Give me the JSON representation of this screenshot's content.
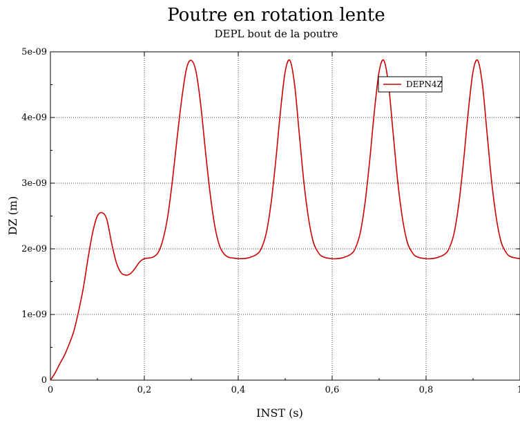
{
  "chart_data": {
    "type": "line",
    "title": "Poutre en rotation lente",
    "subtitle": "DEPL bout de la poutre",
    "xlabel": "INST (s)",
    "ylabel": "DZ (m)",
    "xlim": [
      0,
      1
    ],
    "ylim": [
      0,
      5e-09
    ],
    "x_ticks": [
      0,
      0.2,
      0.4,
      0.6,
      0.8,
      1.0
    ],
    "x_tick_labels": [
      "0",
      "0,2",
      "0,4",
      "0,6",
      "0,8",
      "1"
    ],
    "y_ticks": [
      0,
      1e-09,
      2e-09,
      3e-09,
      4e-09,
      5e-09
    ],
    "y_tick_labels": [
      "0",
      "1e-09",
      "2e-09",
      "3e-09",
      "4e-09",
      "5e-09"
    ],
    "grid": true,
    "legend_position": "top-right",
    "series": [
      {
        "name": "DEPN4Z",
        "color": "#cc0000",
        "x": [
          0,
          0.01,
          0.02,
          0.03,
          0.04,
          0.05,
          0.06,
          0.07,
          0.08,
          0.09,
          0.1,
          0.11,
          0.12,
          0.13,
          0.14,
          0.15,
          0.16,
          0.17,
          0.18,
          0.19,
          0.2,
          0.21,
          0.22,
          0.23,
          0.24,
          0.25,
          0.26,
          0.27,
          0.28,
          0.29,
          0.3,
          0.31,
          0.32,
          0.33,
          0.34,
          0.35,
          0.36,
          0.37,
          0.38,
          0.39,
          0.4,
          0.42,
          0.44,
          0.45,
          0.46,
          0.47,
          0.48,
          0.49,
          0.5,
          0.51,
          0.52,
          0.53,
          0.54,
          0.55,
          0.56,
          0.57,
          0.58,
          0.6,
          0.62,
          0.64,
          0.65,
          0.66,
          0.67,
          0.68,
          0.69,
          0.7,
          0.71,
          0.72,
          0.73,
          0.74,
          0.75,
          0.76,
          0.77,
          0.78,
          0.8,
          0.82,
          0.84,
          0.85,
          0.86,
          0.87,
          0.88,
          0.89,
          0.9,
          0.91,
          0.92,
          0.93,
          0.94,
          0.95,
          0.96,
          0.97,
          0.98,
          1.0
        ],
        "y": [
          0,
          1.1e-10,
          2.5e-10,
          3.8e-10,
          5.5e-10,
          7.5e-10,
          1.05e-09,
          1.4e-09,
          1.85e-09,
          2.25e-09,
          2.5e-09,
          2.55e-09,
          2.45e-09,
          2.1e-09,
          1.8e-09,
          1.64e-09,
          1.6e-09,
          1.62e-09,
          1.7e-09,
          1.8e-09,
          1.85e-09,
          1.86e-09,
          1.88e-09,
          1.95e-09,
          2.15e-09,
          2.5e-09,
          3.05e-09,
          3.7e-09,
          4.3e-09,
          4.75e-09,
          4.87e-09,
          4.7e-09,
          4.2e-09,
          3.5e-09,
          2.85e-09,
          2.35e-09,
          2.05e-09,
          1.92e-09,
          1.87e-09,
          1.86e-09,
          1.85e-09,
          1.86e-09,
          1.92e-09,
          2.02e-09,
          2.25e-09,
          2.7e-09,
          3.35e-09,
          4.1e-09,
          4.7e-09,
          4.87e-09,
          4.5e-09,
          3.75e-09,
          3e-09,
          2.45e-09,
          2.1e-09,
          1.95e-09,
          1.88e-09,
          1.85e-09,
          1.86e-09,
          1.92e-09,
          2.02e-09,
          2.25e-09,
          2.7e-09,
          3.35e-09,
          4.1e-09,
          4.7e-09,
          4.87e-09,
          4.5e-09,
          3.75e-09,
          3e-09,
          2.45e-09,
          2.1e-09,
          1.95e-09,
          1.88e-09,
          1.85e-09,
          1.86e-09,
          1.92e-09,
          2.02e-09,
          2.25e-09,
          2.7e-09,
          3.35e-09,
          4.1e-09,
          4.7e-09,
          4.87e-09,
          4.5e-09,
          3.75e-09,
          3e-09,
          2.45e-09,
          2.1e-09,
          1.95e-09,
          1.88e-09,
          1.85e-09
        ]
      }
    ]
  }
}
